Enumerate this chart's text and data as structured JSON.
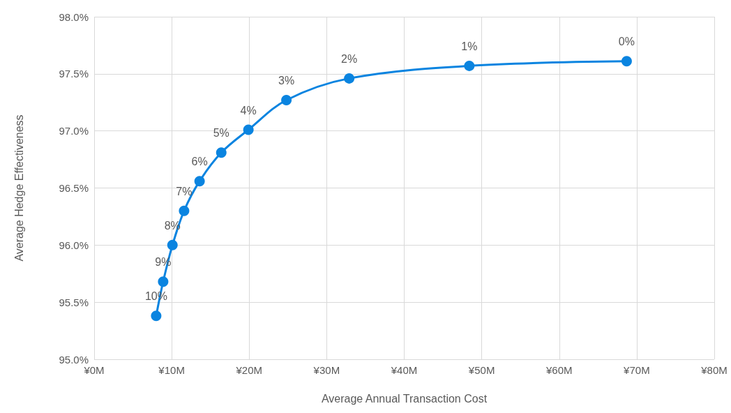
{
  "chart_data": {
    "type": "line",
    "xlabel": "Average Annual Transaction Cost",
    "ylabel": "Average Hedge Effectiveness",
    "x": [
      8.0,
      8.9,
      10.1,
      11.6,
      13.6,
      16.4,
      19.9,
      24.8,
      32.9,
      48.4,
      68.7
    ],
    "series": [
      {
        "color": "#0a84e0",
        "values": [
          95.38,
          95.68,
          96.0,
          96.3,
          96.56,
          96.81,
          97.01,
          97.27,
          97.46,
          97.57,
          97.61
        ]
      }
    ],
    "annotations": [
      {
        "text": "10%",
        "x": 8.0,
        "y": 95.38
      },
      {
        "text": "9%",
        "x": 8.9,
        "y": 95.68
      },
      {
        "text": "8%",
        "x": 10.1,
        "y": 96.0
      },
      {
        "text": "7%",
        "x": 11.6,
        "y": 96.3
      },
      {
        "text": "6%",
        "x": 13.6,
        "y": 96.56
      },
      {
        "text": "5%",
        "x": 16.4,
        "y": 96.81
      },
      {
        "text": "4%",
        "x": 19.9,
        "y": 97.01
      },
      {
        "text": "3%",
        "x": 24.8,
        "y": 97.27
      },
      {
        "text": "2%",
        "x": 32.9,
        "y": 97.46
      },
      {
        "text": "1%",
        "x": 48.4,
        "y": 97.57
      },
      {
        "text": "0%",
        "x": 68.7,
        "y": 97.61
      }
    ],
    "xlim": [
      0,
      80
    ],
    "xticks": [
      {
        "value": 0,
        "label": "¥0M"
      },
      {
        "value": 10,
        "label": "¥10M"
      },
      {
        "value": 20,
        "label": "¥20M"
      },
      {
        "value": 30,
        "label": "¥30M"
      },
      {
        "value": 40,
        "label": "¥40M"
      },
      {
        "value": 50,
        "label": "¥50M"
      },
      {
        "value": 60,
        "label": "¥60M"
      },
      {
        "value": 70,
        "label": "¥70M"
      },
      {
        "value": 80,
        "label": "¥80M"
      }
    ],
    "ylim": [
      95,
      98
    ],
    "yticks": [
      {
        "value": 95,
        "label": "95.0%"
      },
      {
        "value": 95.5,
        "label": "95.5%"
      },
      {
        "value": 96,
        "label": "96.0%"
      },
      {
        "value": 96.5,
        "label": "96.5%"
      },
      {
        "value": 97,
        "label": "97.0%"
      },
      {
        "value": 97.5,
        "label": "97.5%"
      },
      {
        "value": 98,
        "label": "98.0%"
      }
    ],
    "grid": true,
    "marker": "circle",
    "line_style": "solid"
  }
}
